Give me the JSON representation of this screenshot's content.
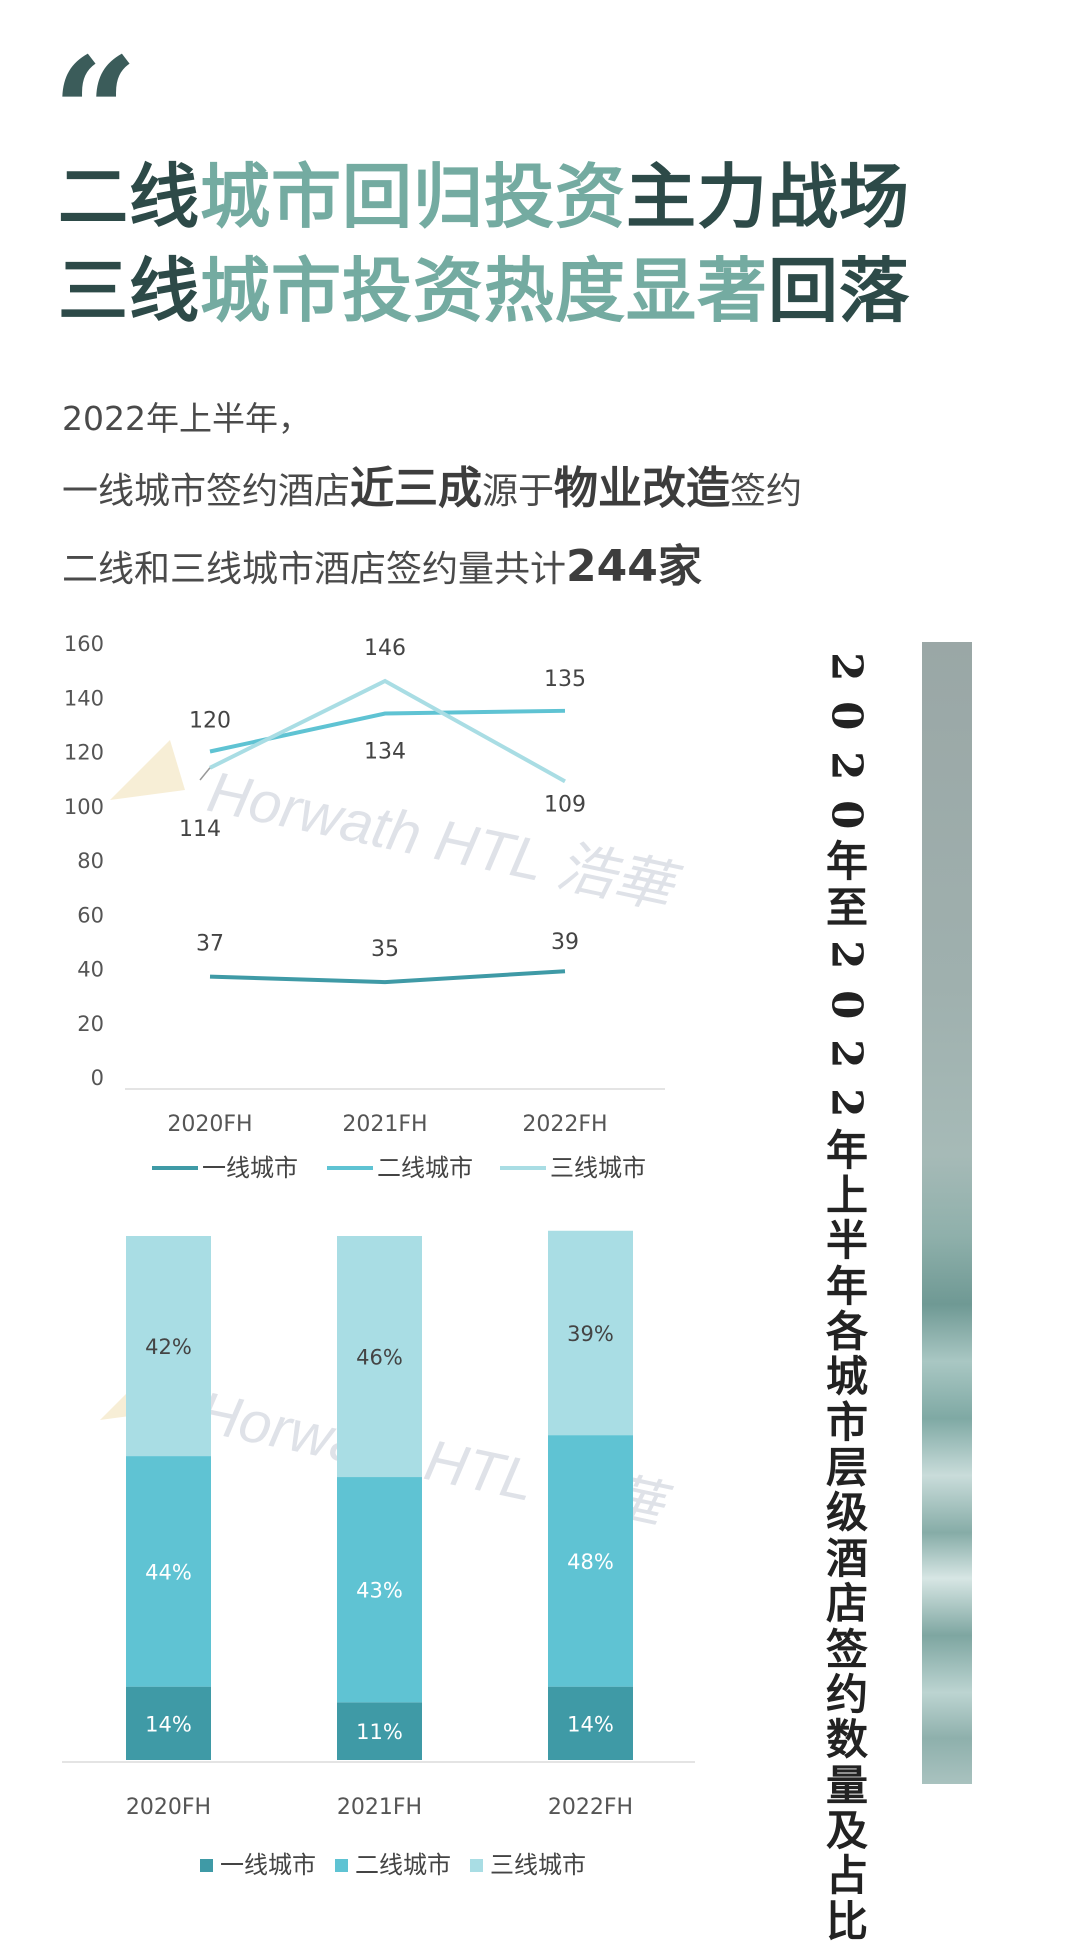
{
  "headline": {
    "line1": [
      {
        "text": "二线",
        "style": "dark"
      },
      {
        "text": "城市回归投资",
        "style": "light"
      },
      {
        "text": "主力战场",
        "style": "dark"
      }
    ],
    "line2": [
      {
        "text": "三线",
        "style": "dark"
      },
      {
        "text": "城市投资热度显著",
        "style": "light"
      },
      {
        "text": "回落",
        "style": "dark"
      }
    ]
  },
  "intro": {
    "line1": "2022年上半年，",
    "line2": [
      {
        "text": "一线城市签约酒店",
        "bold": false
      },
      {
        "text": "近三成",
        "bold": true
      },
      {
        "text": "源于",
        "bold": false
      },
      {
        "text": "物业改造",
        "bold": true
      },
      {
        "text": "签约",
        "bold": false
      }
    ],
    "line3": [
      {
        "text": "二线和三线城市酒店签约量共计",
        "bold": false
      },
      {
        "text": "244家",
        "bold": true
      }
    ]
  },
  "side_title": "2020年至2022年上半年各城市层级酒店签约数量及占比",
  "watermark": "Horwath HTL 浩華",
  "colors": {
    "tier1": "#3f9aa6",
    "tier2": "#5fc3d3",
    "tier3": "#a9dde4",
    "headline_dark": "#2d4a48",
    "headline_light": "#74aba1"
  },
  "chart_data": [
    {
      "type": "line",
      "categories": [
        "2020FH",
        "2021FH",
        "2022FH"
      ],
      "ylim": [
        0,
        160
      ],
      "yticks": [
        0,
        20,
        40,
        60,
        80,
        100,
        120,
        140,
        160
      ],
      "grid": false,
      "legend": "bottom",
      "series": [
        {
          "name": "一线城市",
          "values": [
            37,
            35,
            39
          ]
        },
        {
          "name": "二线城市",
          "values": [
            120,
            134,
            135
          ]
        },
        {
          "name": "三线城市",
          "values": [
            114,
            146,
            109
          ]
        }
      ]
    },
    {
      "type": "bar",
      "stacked": true,
      "categories": [
        "2020FH",
        "2021FH",
        "2022FH"
      ],
      "legend": "bottom",
      "series": [
        {
          "name": "一线城市",
          "values": [
            14,
            11,
            14
          ],
          "labels": [
            "14%",
            "11%",
            "14%"
          ]
        },
        {
          "name": "二线城市",
          "values": [
            44,
            43,
            48
          ],
          "labels": [
            "44%",
            "43%",
            "48%"
          ]
        },
        {
          "name": "三线城市",
          "values": [
            42,
            46,
            39
          ],
          "labels": [
            "42%",
            "46%",
            "39%"
          ]
        }
      ]
    }
  ]
}
